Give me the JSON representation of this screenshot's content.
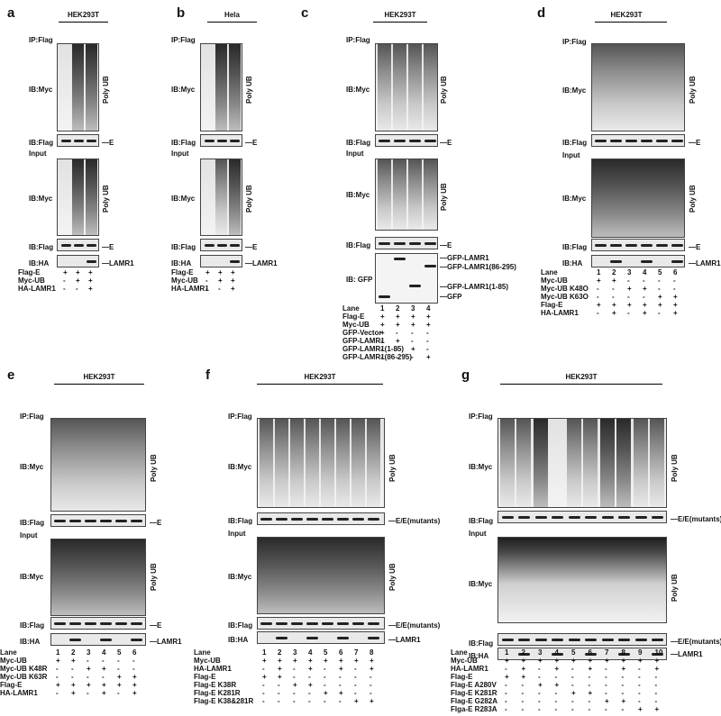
{
  "panels": {
    "a": {
      "letter": "a",
      "cell": "HEK293T",
      "ip": "IP:Flag",
      "ib1": "IB:Myc",
      "ib2": "IB:Flag",
      "input": "Input",
      "ib3": "IB:Myc",
      "ib4": "IB:Flag",
      "ib5": "IB:HA",
      "polyub": "Poly UB",
      "band_e": "E",
      "band_lamr1": "LAMR1",
      "rows": [
        {
          "label": "Flag-E",
          "marks": [
            "+",
            "+",
            "+"
          ]
        },
        {
          "label": "Myc-UB",
          "marks": [
            "-",
            "+",
            "+"
          ]
        },
        {
          "label": "HA-LAMR1",
          "marks": [
            "-",
            "-",
            "+"
          ]
        }
      ]
    },
    "b": {
      "letter": "b",
      "cell": "Hela",
      "ip": "IP:Flag",
      "ib1": "IB:Myc",
      "ib2": "IB:Flag",
      "input": "Input",
      "ib3": "IB:Myc",
      "ib4": "IB:Flag",
      "ib5": "IB:HA",
      "polyub": "Poly UB",
      "band_e": "E",
      "band_lamr1": "LAMR1",
      "rows": [
        {
          "label": "Flag-E",
          "marks": [
            "+",
            "+",
            "+"
          ]
        },
        {
          "label": "Myc-UB",
          "marks": [
            "-",
            "+",
            "+"
          ]
        },
        {
          "label": "HA-LAMR1",
          "marks": [
            "-",
            "-",
            "+"
          ]
        }
      ]
    },
    "c": {
      "letter": "c",
      "cell": "HEK293T",
      "ip": "IP:Flag",
      "ib1": "IB:Myc",
      "ib2": "IB:Flag",
      "input": "Input",
      "ib3": "IB:Myc",
      "ib4": "IB:Flag",
      "ib5": "IB: GFP",
      "polyub": "Poly UB",
      "band_e": "E",
      "gfp_labels": [
        "GFP-LAMR1",
        "GFP-LAMR1(86-295)",
        "GFP-LAMR1(1-85)",
        "GFP"
      ],
      "lane_label": "Lane",
      "lanes": [
        "1",
        "2",
        "3",
        "4"
      ],
      "rows": [
        {
          "label": "Flag-E",
          "marks": [
            "+",
            "+",
            "+",
            "+"
          ]
        },
        {
          "label": "Myc-UB",
          "marks": [
            "+",
            "+",
            "+",
            "+"
          ]
        },
        {
          "label": "GFP-Vector",
          "marks": [
            "+",
            "-",
            "-",
            "-"
          ]
        },
        {
          "label": "GFP-LAMR1",
          "marks": [
            "-",
            "+",
            "-",
            "-"
          ]
        },
        {
          "label": "GFP-LAMR1(1-85)",
          "marks": [
            "-",
            "-",
            "+",
            "-"
          ]
        },
        {
          "label": "GFP-LAMR1(86-295)",
          "marks": [
            "-",
            "-",
            "-",
            "+"
          ]
        }
      ]
    },
    "d": {
      "letter": "d",
      "cell": "HEK293T",
      "ip": "IP:Flag",
      "ib1": "IB:Myc",
      "ib2": "IB:Flag",
      "input": "Input",
      "ib3": "IB:Myc",
      "ib4": "IB:Flag",
      "ib5": "IB:HA",
      "polyub": "Poly UB",
      "band_e": "E",
      "band_lamr1": "LAMR1",
      "lane_label": "Lane",
      "lanes": [
        "1",
        "2",
        "3",
        "4",
        "5",
        "6"
      ],
      "rows": [
        {
          "label": "Myc-UB",
          "marks": [
            "+",
            "+",
            "-",
            "-",
            "-",
            "-"
          ]
        },
        {
          "label": "Myc-UB K48O",
          "marks": [
            "-",
            "-",
            "+",
            "+",
            "-",
            "-"
          ]
        },
        {
          "label": "Myc-UB K63O",
          "marks": [
            "-",
            "-",
            "-",
            "-",
            "+",
            "+"
          ]
        },
        {
          "label": "Flag-E",
          "marks": [
            "+",
            "+",
            "+",
            "+",
            "+",
            "+"
          ]
        },
        {
          "label": "HA-LAMR1",
          "marks": [
            "-",
            "+",
            "-",
            "+",
            "-",
            "+"
          ]
        }
      ]
    },
    "e": {
      "letter": "e",
      "cell": "HEK293T",
      "ip": "IP:Flag",
      "ib1": "IB:Myc",
      "ib2": "IB:Flag",
      "input": "Input",
      "ib3": "IB:Myc",
      "ib4": "IB:Flag",
      "ib5": "IB:HA",
      "polyub": "Poly UB",
      "band_e": "E",
      "band_lamr1": "LAMR1",
      "lane_label": "Lane",
      "lanes": [
        "1",
        "2",
        "3",
        "4",
        "5",
        "6"
      ],
      "rows": [
        {
          "label": "Myc-UB",
          "marks": [
            "+",
            "+",
            "-",
            "-",
            "-",
            "-"
          ]
        },
        {
          "label": "Myc-UB K48R",
          "marks": [
            "-",
            "-",
            "+",
            "+",
            "-",
            "-"
          ]
        },
        {
          "label": "Myc-UB K63R",
          "marks": [
            "-",
            "-",
            "-",
            "-",
            "+",
            "+"
          ]
        },
        {
          "label": "Flag-E",
          "marks": [
            "+",
            "+",
            "+",
            "+",
            "+",
            "+"
          ]
        },
        {
          "label": "HA-LAMR1",
          "marks": [
            "-",
            "+",
            "-",
            "+",
            "-",
            "+"
          ]
        }
      ]
    },
    "f": {
      "letter": "f",
      "cell": "HEK293T",
      "ip": "IP:Flag",
      "ib1": "IB:Myc",
      "ib2": "IB:Flag",
      "input": "Input",
      "ib3": "IB:Myc",
      "ib4": "IB:Flag",
      "ib5": "IB:HA",
      "polyub": "Poly UB",
      "band_e": "E/E(mutants)",
      "band_lamr1": "LAMR1",
      "lane_label": "Lane",
      "lanes": [
        "1",
        "2",
        "3",
        "4",
        "5",
        "6",
        "7",
        "8"
      ],
      "rows": [
        {
          "label": "Myc-UB",
          "marks": [
            "+",
            "+",
            "+",
            "+",
            "+",
            "+",
            "+",
            "+"
          ]
        },
        {
          "label": "HA-LAMR1",
          "marks": [
            "-",
            "+",
            "-",
            "+",
            "-",
            "+",
            "-",
            "+"
          ]
        },
        {
          "label": "Flag-E",
          "marks": [
            "+",
            "+",
            "-",
            "-",
            "-",
            "-",
            "-",
            "-"
          ]
        },
        {
          "label": "Flag-E K38R",
          "marks": [
            "-",
            "-",
            "+",
            "+",
            "-",
            "-",
            "-",
            "-"
          ]
        },
        {
          "label": "Flag-E K281R",
          "marks": [
            "-",
            "-",
            "-",
            "-",
            "+",
            "+",
            "-",
            "-"
          ]
        },
        {
          "label": "Flag-E K38&281R",
          "marks": [
            "-",
            "-",
            "-",
            "-",
            "-",
            "-",
            "+",
            "+"
          ]
        }
      ]
    },
    "g": {
      "letter": "g",
      "cell": "HEK293T",
      "ip": "IP:Flag",
      "ib1": "IB:Myc",
      "ib2": "IB:Flag",
      "input": "Input",
      "ib3": "IB:Myc",
      "ib4": "IB:Flag",
      "ib5": "IB:HA",
      "polyub": "Poly UB",
      "band_e": "E/E(mutants)",
      "band_lamr1": "LAMR1",
      "lane_label": "Lane",
      "lanes": [
        "1",
        "2",
        "3",
        "4",
        "5",
        "6",
        "7",
        "8",
        "9",
        "10"
      ],
      "rows": [
        {
          "label": "Myc-UB",
          "marks": [
            "+",
            "+",
            "+",
            "+",
            "+",
            "+",
            "+",
            "+",
            "+",
            "+"
          ]
        },
        {
          "label": "HA-LAMR1",
          "marks": [
            "-",
            "+",
            "-",
            "+",
            "-",
            "+",
            "-",
            "+",
            "-",
            "+"
          ]
        },
        {
          "label": "Flag-E",
          "marks": [
            "+",
            "+",
            "-",
            "-",
            "-",
            "-",
            "-",
            "-",
            "-",
            "-"
          ]
        },
        {
          "label": "Flag-E A280V",
          "marks": [
            "-",
            "-",
            "+",
            "+",
            "-",
            "-",
            "-",
            "-",
            "-",
            "-"
          ]
        },
        {
          "label": "Flag-E K281R",
          "marks": [
            "-",
            "-",
            "-",
            "-",
            "+",
            "+",
            "-",
            "-",
            "-",
            "-"
          ]
        },
        {
          "label": "Flag-E G282A",
          "marks": [
            "-",
            "-",
            "-",
            "-",
            "-",
            "-",
            "+",
            "+",
            "-",
            "-"
          ]
        },
        {
          "label": "Flga-E R283A",
          "marks": [
            "-",
            "-",
            "-",
            "-",
            "-",
            "-",
            "-",
            "-",
            "+",
            "+"
          ]
        }
      ]
    }
  }
}
